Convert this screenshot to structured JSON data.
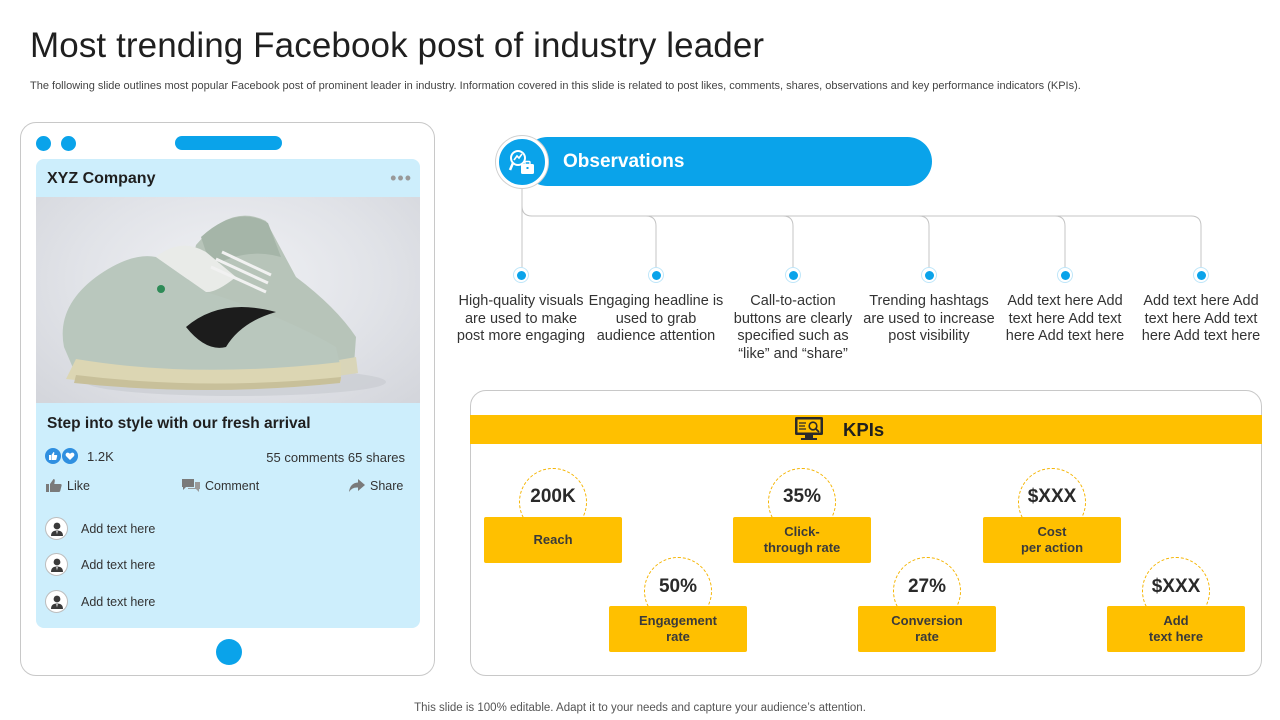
{
  "header": {
    "title": "Most trending Facebook post of industry leader",
    "subtitle": "The following slide outlines most popular Facebook post of prominent leader in industry. Information covered in this slide is related to post likes, comments, shares, observations and key performance indicators (KPIs)."
  },
  "post": {
    "company": "XYZ Company",
    "menu_icon": "more-dots-icon",
    "caption": "Step into style with our fresh arrival",
    "likes": "1.2K",
    "engagement": "55 comments 65 shares",
    "actions": {
      "like": "Like",
      "comment": "Comment",
      "share": "Share"
    },
    "comments": [
      {
        "text": "Add text here"
      },
      {
        "text": "Add text here"
      },
      {
        "text": "Add text here"
      }
    ]
  },
  "observations": {
    "title": "Observations",
    "items": [
      {
        "text": "High-quality visuals are used to make post more engaging"
      },
      {
        "text": "Engaging headline is used to grab audience attention"
      },
      {
        "text": "Call-to-action buttons are clearly specified such as “like” and “share”"
      },
      {
        "text": "Trending hashtags are used to increase post visibility"
      },
      {
        "text": "Add text here Add text here Add text here Add text here"
      },
      {
        "text": "Add text here Add text here Add text here Add text here"
      }
    ]
  },
  "kpis": {
    "title": "KPIs",
    "items": [
      {
        "value": "200K",
        "label": "Reach"
      },
      {
        "value": "50%",
        "label": "Engagement\nrate"
      },
      {
        "value": "35%",
        "label": "Click-\nthrough rate"
      },
      {
        "value": "27%",
        "label": "Conversion\nrate"
      },
      {
        "value": "$XXX",
        "label": "Cost\nper action"
      },
      {
        "value": "$XXX",
        "label": "Add\ntext here"
      }
    ]
  },
  "footer": {
    "text": "This slide is 100% editable. Adapt it to your needs and capture your audience’s attention."
  },
  "colors": {
    "accent_blue": "#0aa3ea",
    "accent_yellow": "#ffc000",
    "screen_bg": "#cdeefc"
  }
}
